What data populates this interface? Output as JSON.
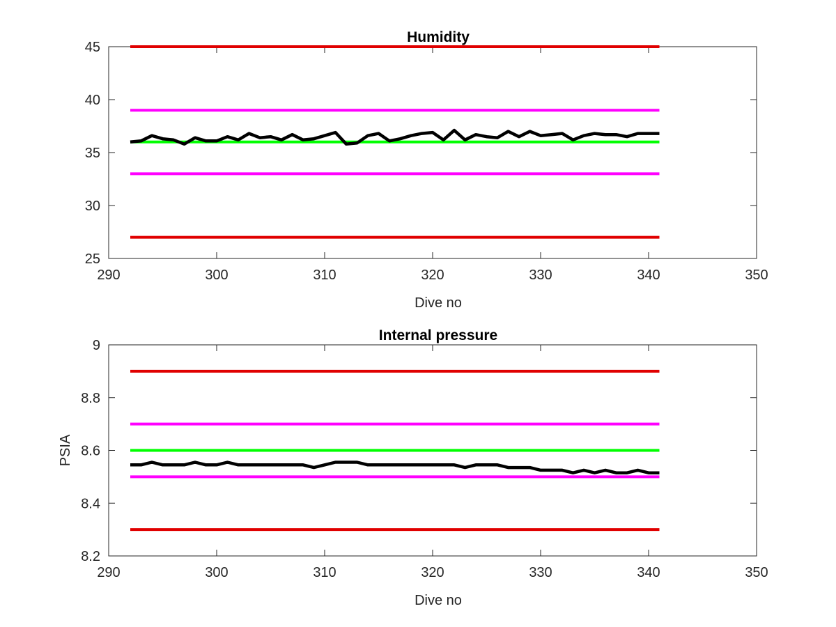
{
  "chart_data": [
    {
      "type": "line",
      "title": "Humidity",
      "xlabel": "Dive no",
      "ylabel": "",
      "xlim": [
        290,
        350
      ],
      "ylim": [
        25,
        45
      ],
      "xticks": [
        "290",
        "300",
        "310",
        "320",
        "330",
        "340",
        "350"
      ],
      "yticks": [
        "25",
        "30",
        "35",
        "40",
        "45"
      ],
      "grid": false,
      "reference_lines": [
        {
          "y": 45,
          "x": [
            292,
            341
          ],
          "color": "#e00000"
        },
        {
          "y": 39,
          "x": [
            292,
            341
          ],
          "color": "#ff00ff"
        },
        {
          "y": 36,
          "x": [
            292,
            341
          ],
          "color": "#00ff00"
        },
        {
          "y": 33,
          "x": [
            292,
            341
          ],
          "color": "#ff00ff"
        },
        {
          "y": 27,
          "x": [
            292,
            341
          ],
          "color": "#e00000"
        }
      ],
      "series": [
        {
          "color": "#000000",
          "x": [
            292,
            293,
            294,
            295,
            296,
            297,
            298,
            299,
            300,
            301,
            302,
            303,
            304,
            305,
            306,
            307,
            308,
            309,
            310,
            311,
            312,
            313,
            314,
            315,
            316,
            317,
            318,
            319,
            320,
            321,
            322,
            323,
            324,
            325,
            326,
            327,
            328,
            329,
            330,
            331,
            332,
            333,
            334,
            335,
            336,
            337,
            338,
            339,
            340,
            341
          ],
          "values": [
            36.0,
            36.1,
            36.6,
            36.3,
            36.2,
            35.8,
            36.4,
            36.1,
            36.1,
            36.5,
            36.2,
            36.8,
            36.4,
            36.5,
            36.2,
            36.7,
            36.2,
            36.3,
            36.6,
            36.9,
            35.8,
            35.9,
            36.6,
            36.8,
            36.1,
            36.3,
            36.6,
            36.8,
            36.9,
            36.2,
            37.1,
            36.2,
            36.7,
            36.5,
            36.4,
            37.0,
            36.5,
            37.0,
            36.6,
            36.7,
            36.8,
            36.2,
            36.6,
            36.8,
            36.7,
            36.7,
            36.5,
            36.8,
            36.8,
            36.8
          ]
        }
      ]
    },
    {
      "type": "line",
      "title": "Internal pressure",
      "xlabel": "Dive no",
      "ylabel": "PSIA",
      "xlim": [
        290,
        350
      ],
      "ylim": [
        8.2,
        9
      ],
      "xticks": [
        "290",
        "300",
        "310",
        "320",
        "330",
        "340",
        "350"
      ],
      "yticks": [
        "8.2",
        "8.4",
        "8.6",
        "8.8",
        "9"
      ],
      "grid": false,
      "reference_lines": [
        {
          "y": 8.9,
          "x": [
            292,
            341
          ],
          "color": "#e00000"
        },
        {
          "y": 8.7,
          "x": [
            292,
            341
          ],
          "color": "#ff00ff"
        },
        {
          "y": 8.6,
          "x": [
            292,
            341
          ],
          "color": "#00ff00"
        },
        {
          "y": 8.5,
          "x": [
            292,
            341
          ],
          "color": "#ff00ff"
        },
        {
          "y": 8.3,
          "x": [
            292,
            341
          ],
          "color": "#e00000"
        }
      ],
      "series": [
        {
          "color": "#000000",
          "x": [
            292,
            293,
            294,
            295,
            296,
            297,
            298,
            299,
            300,
            301,
            302,
            303,
            304,
            305,
            306,
            307,
            308,
            309,
            310,
            311,
            312,
            313,
            314,
            315,
            316,
            317,
            318,
            319,
            320,
            321,
            322,
            323,
            324,
            325,
            326,
            327,
            328,
            329,
            330,
            331,
            332,
            333,
            334,
            335,
            336,
            337,
            338,
            339,
            340,
            341
          ],
          "values": [
            8.545,
            8.545,
            8.555,
            8.545,
            8.545,
            8.545,
            8.555,
            8.545,
            8.545,
            8.555,
            8.545,
            8.545,
            8.545,
            8.545,
            8.545,
            8.545,
            8.545,
            8.535,
            8.545,
            8.555,
            8.555,
            8.555,
            8.545,
            8.545,
            8.545,
            8.545,
            8.545,
            8.545,
            8.545,
            8.545,
            8.545,
            8.535,
            8.545,
            8.545,
            8.545,
            8.535,
            8.535,
            8.535,
            8.525,
            8.525,
            8.525,
            8.515,
            8.525,
            8.515,
            8.525,
            8.515,
            8.515,
            8.525,
            8.515,
            8.515
          ]
        }
      ]
    }
  ]
}
